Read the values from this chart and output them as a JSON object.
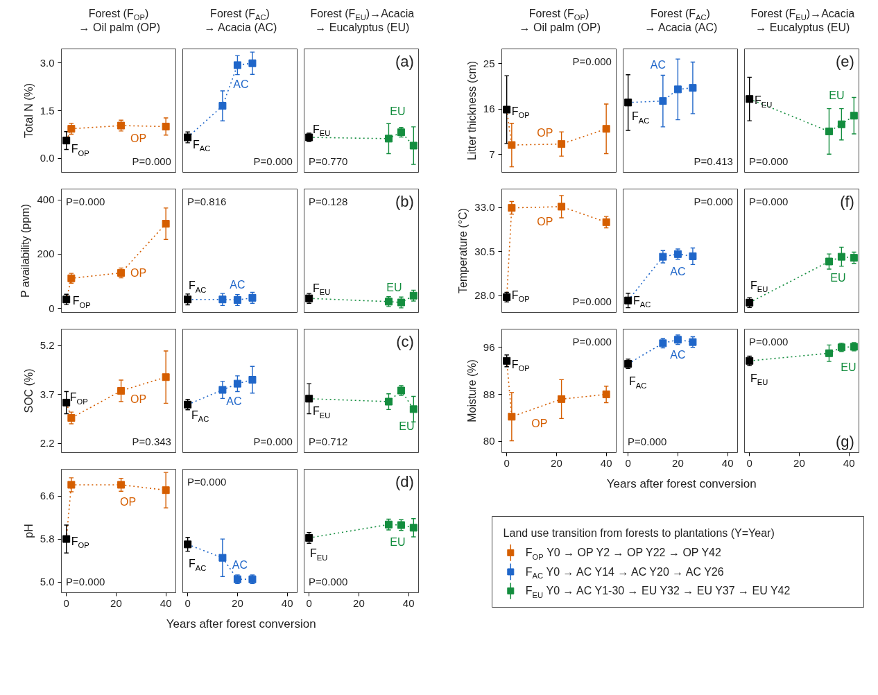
{
  "chart_data": [
    {
      "type": "line",
      "title": "Forest (F$_{OP}$)\n→ Oil palm (OP)",
      "ylabel": "Total N (%)",
      "xlim": [
        -2,
        44
      ],
      "ylim": [
        -0.44,
        3.44
      ],
      "yticks": [
        {
          "value": 0,
          "label": "0.0"
        },
        {
          "value": 1.5,
          "label": "1.5"
        },
        {
          "value": 3,
          "label": "3.0"
        }
      ],
      "tick_labels": "y",
      "marker": "square",
      "line_style": "dotted",
      "series": [
        {
          "color": "#d55e00",
          "colors": [
            "#000000",
            "#d55e00",
            "#d55e00",
            "#d55e00"
          ],
          "x": [
            0,
            2,
            22,
            40
          ],
          "values": [
            0.56,
            0.93,
            1.03,
            1.0
          ],
          "errors": [
            0.28,
            0.17,
            0.17,
            0.27
          ]
        }
      ],
      "annotations": [
        "F$_{OP}$",
        "OP",
        "P=0.000"
      ]
    },
    {
      "type": "line",
      "title": "Forest (F$_{AC}$)\n→ Acacia (AC)",
      "xlim": [
        -2,
        44
      ],
      "ylim": [
        -0.44,
        3.44
      ],
      "tick_labels": false,
      "marker": "square",
      "line_style": "dotted",
      "series": [
        {
          "color": "#1f66c9",
          "colors": [
            "#000000",
            "#1f66c9",
            "#1f66c9",
            "#1f66c9"
          ],
          "x": [
            0,
            14,
            20,
            26
          ],
          "values": [
            0.66,
            1.65,
            2.93,
            2.99
          ],
          "errors": [
            0.17,
            0.47,
            0.3,
            0.35
          ]
        }
      ],
      "annotations": [
        "F$_{AC}$",
        "AC",
        "P=0.000"
      ]
    },
    {
      "type": "line",
      "title": "Forest (F$_{EU}$)→Acacia\n→ Eucalyptus (EU)",
      "xlim": [
        -2,
        44
      ],
      "ylim": [
        -0.44,
        3.44
      ],
      "tick_labels": false,
      "marker": "square",
      "line_style": "dotted",
      "series": [
        {
          "color": "#138d3e",
          "colors": [
            "#000000",
            "#138d3e",
            "#138d3e",
            "#138d3e"
          ],
          "x": [
            0,
            32,
            37,
            42
          ],
          "values": [
            0.66,
            0.62,
            0.82,
            0.4
          ],
          "errors": [
            0.13,
            0.47,
            0.15,
            0.59
          ]
        }
      ],
      "annotations": [
        "F$_{EU}$",
        "EU",
        "P=0.770",
        "(a)"
      ]
    },
    {
      "type": "line",
      "ylabel": "P availability (ppm)",
      "xlim": [
        -2,
        44
      ],
      "ylim": [
        -15,
        440
      ],
      "yticks": [
        0,
        200,
        400
      ],
      "tick_labels": "y",
      "marker": "square",
      "line_style": "dotted",
      "series": [
        {
          "color": "#d55e00",
          "colors": [
            "#000000",
            "#d55e00",
            "#d55e00",
            "#d55e00"
          ],
          "x": [
            0,
            2,
            22,
            40
          ],
          "values": [
            33,
            111,
            131,
            312
          ],
          "errors": [
            19,
            18,
            18,
            58
          ]
        }
      ],
      "annotations": [
        "F$_{OP}$",
        "OP",
        "P=0.000"
      ]
    },
    {
      "type": "line",
      "xlim": [
        -2,
        44
      ],
      "ylim": [
        -15,
        440
      ],
      "tick_labels": false,
      "marker": "square",
      "line_style": "dotted",
      "series": [
        {
          "color": "#1f66c9",
          "colors": [
            "#000000",
            "#1f66c9",
            "#1f66c9",
            "#1f66c9"
          ],
          "x": [
            0,
            14,
            20,
            26
          ],
          "values": [
            33,
            33,
            31,
            39
          ],
          "errors": [
            20,
            22,
            20,
            20
          ]
        }
      ],
      "annotations": [
        "F$_{AC}$",
        "AC",
        "P=0.816"
      ]
    },
    {
      "type": "line",
      "xlim": [
        -2,
        44
      ],
      "ylim": [
        -15,
        440
      ],
      "tick_labels": false,
      "marker": "square",
      "line_style": "dotted",
      "series": [
        {
          "color": "#138d3e",
          "colors": [
            "#000000",
            "#138d3e",
            "#138d3e",
            "#138d3e"
          ],
          "x": [
            0,
            32,
            37,
            42
          ],
          "values": [
            37,
            25,
            22,
            47
          ],
          "errors": [
            18,
            18,
            20,
            20
          ]
        }
      ],
      "annotations": [
        "F$_{EU}$",
        "EU",
        "P=0.128",
        "(b)"
      ]
    },
    {
      "type": "line",
      "ylabel": "SOC (%)",
      "xlim": [
        -2,
        44
      ],
      "ylim": [
        1.92,
        5.7
      ],
      "yticks": [
        2.2,
        3.7,
        5.2
      ],
      "tick_labels": "y",
      "marker": "square",
      "line_style": "dotted",
      "series": [
        {
          "color": "#d55e00",
          "colors": [
            "#000000",
            "#d55e00",
            "#d55e00",
            "#d55e00"
          ],
          "x": [
            0,
            2,
            22,
            40
          ],
          "values": [
            3.45,
            2.98,
            3.81,
            4.23
          ],
          "errors": [
            0.34,
            0.18,
            0.33,
            0.8
          ]
        }
      ],
      "annotations": [
        "F$_{OP}$",
        "OP",
        "P=0.343"
      ]
    },
    {
      "type": "line",
      "xlim": [
        -2,
        44
      ],
      "ylim": [
        1.92,
        5.7
      ],
      "tick_labels": false,
      "marker": "square",
      "line_style": "dotted",
      "series": [
        {
          "color": "#1f66c9",
          "colors": [
            "#000000",
            "#1f66c9",
            "#1f66c9",
            "#1f66c9"
          ],
          "x": [
            0,
            14,
            20,
            26
          ],
          "values": [
            3.39,
            3.84,
            4.03,
            4.15
          ],
          "errors": [
            0.16,
            0.26,
            0.24,
            0.41
          ]
        }
      ],
      "annotations": [
        "F$_{AC}$",
        "AC",
        "P=0.000"
      ]
    },
    {
      "type": "line",
      "xlim": [
        -2,
        44
      ],
      "ylim": [
        1.92,
        5.7
      ],
      "tick_labels": false,
      "marker": "square",
      "line_style": "dotted",
      "series": [
        {
          "color": "#138d3e",
          "colors": [
            "#000000",
            "#138d3e",
            "#138d3e",
            "#138d3e"
          ],
          "x": [
            0,
            32,
            37,
            42
          ],
          "values": [
            3.57,
            3.48,
            3.82,
            3.25
          ],
          "errors": [
            0.46,
            0.24,
            0.15,
            0.39
          ]
        }
      ],
      "annotations": [
        "F$_{EU}$",
        "EU",
        "P=0.712",
        "(c)"
      ]
    },
    {
      "type": "line",
      "ylabel": "pH",
      "xlim": [
        -2,
        44
      ],
      "ylim": [
        4.8,
        7.1
      ],
      "xticks": [
        0,
        20,
        40
      ],
      "yticks": [
        {
          "value": 5,
          "label": "5.0"
        },
        5.8,
        6.6
      ],
      "marker": "square",
      "line_style": "dotted",
      "series": [
        {
          "color": "#d55e00",
          "colors": [
            "#000000",
            "#d55e00",
            "#d55e00",
            "#d55e00"
          ],
          "x": [
            0,
            2,
            22,
            40
          ],
          "values": [
            5.8,
            6.81,
            6.81,
            6.71
          ],
          "errors": [
            0.26,
            0.13,
            0.12,
            0.33
          ]
        }
      ],
      "annotations": [
        "F$_{OP}$",
        "OP",
        "P=0.000"
      ]
    },
    {
      "type": "line",
      "xlabel": "Years after forest conversion",
      "xlim": [
        -2,
        44
      ],
      "ylim": [
        4.8,
        7.1
      ],
      "xticks": [
        0,
        20,
        40
      ],
      "tick_labels": "x",
      "marker": "square",
      "line_style": "dotted",
      "series": [
        {
          "color": "#1f66c9",
          "colors": [
            "#000000",
            "#1f66c9",
            "#1f66c9",
            "#1f66c9"
          ],
          "x": [
            0,
            14,
            20,
            26
          ],
          "values": [
            5.7,
            5.45,
            5.05,
            5.05
          ],
          "errors": [
            0.13,
            0.35,
            0.08,
            0.08
          ]
        }
      ],
      "annotations": [
        "F$_{AC}$",
        "AC",
        "P=0.000"
      ]
    },
    {
      "type": "line",
      "xlim": [
        -2,
        44
      ],
      "ylim": [
        4.8,
        7.1
      ],
      "xticks": [
        0,
        20,
        40
      ],
      "tick_labels": "x",
      "marker": "square",
      "line_style": "dotted",
      "series": [
        {
          "color": "#138d3e",
          "colors": [
            "#000000",
            "#138d3e",
            "#138d3e",
            "#138d3e"
          ],
          "x": [
            0,
            32,
            37,
            42
          ],
          "values": [
            5.82,
            6.07,
            6.06,
            6.01
          ],
          "errors": [
            0.1,
            0.1,
            0.1,
            0.17
          ]
        }
      ],
      "annotations": [
        "F$_{EU}$",
        "EU",
        "P=0.000",
        "(d)"
      ]
    },
    {
      "type": "line",
      "title": "Forest (F$_{OP}$)\n→ Oil palm (OP)",
      "ylabel": "Litter thickness (cm)",
      "xlim": [
        -2,
        44
      ],
      "ylim": [
        3.5,
        27.9
      ],
      "yticks": [
        7,
        16,
        25
      ],
      "tick_labels": "y",
      "marker": "square",
      "line_style": "dotted",
      "series": [
        {
          "color": "#d55e00",
          "colors": [
            "#000000",
            "#d55e00",
            "#d55e00",
            "#d55e00"
          ],
          "x": [
            0,
            2,
            22,
            40
          ],
          "values": [
            15.9,
            8.9,
            9.1,
            12.1
          ],
          "errors": [
            6.7,
            4.3,
            2.4,
            4.9
          ]
        }
      ],
      "annotations": [
        "F$_{OP}$",
        "OP",
        "P=0.000"
      ]
    },
    {
      "type": "line",
      "title": "Forest (F$_{AC}$)\n→ Acacia (AC)",
      "xlim": [
        -2,
        44
      ],
      "ylim": [
        3.5,
        27.9
      ],
      "tick_labels": false,
      "marker": "square",
      "line_style": "dotted",
      "series": [
        {
          "color": "#1f66c9",
          "colors": [
            "#000000",
            "#1f66c9",
            "#1f66c9",
            "#1f66c9"
          ],
          "x": [
            0,
            14,
            20,
            26
          ],
          "values": [
            17.3,
            17.6,
            19.9,
            20.2
          ],
          "errors": [
            5.5,
            5.1,
            6.0,
            5.1
          ]
        }
      ],
      "annotations": [
        "F$_{AC}$",
        "AC",
        "P=0.413"
      ]
    },
    {
      "type": "line",
      "title": "Forest (F$_{EU}$)→Acacia\n→ Eucalyptus (EU)",
      "xlim": [
        -2,
        44
      ],
      "ylim": [
        3.5,
        27.9
      ],
      "tick_labels": false,
      "marker": "square",
      "line_style": "dotted",
      "series": [
        {
          "color": "#138d3e",
          "colors": [
            "#000000",
            "#138d3e",
            "#138d3e",
            "#138d3e"
          ],
          "x": [
            0,
            32,
            37,
            42
          ],
          "values": [
            18.0,
            11.6,
            13.0,
            14.7
          ],
          "errors": [
            4.3,
            4.5,
            3.1,
            3.6
          ]
        }
      ],
      "annotations": [
        "F$_{EU}$",
        "EU",
        "P=0.000",
        "(e)"
      ]
    },
    {
      "type": "line",
      "ylabel": "Temperature (°C)",
      "xlim": [
        -2,
        44
      ],
      "ylim": [
        27.05,
        34.05
      ],
      "yticks": [
        {
          "value": 28,
          "label": "28.0"
        },
        30.5,
        {
          "value": 33,
          "label": "33.0"
        }
      ],
      "tick_labels": "y",
      "marker": "square",
      "line_style": "dotted",
      "series": [
        {
          "color": "#d55e00",
          "colors": [
            "#000000",
            "#d55e00",
            "#d55e00",
            "#d55e00"
          ],
          "x": [
            0,
            2,
            22,
            40
          ],
          "values": [
            27.92,
            32.98,
            33.05,
            32.17
          ],
          "errors": [
            0.27,
            0.36,
            0.63,
            0.32
          ]
        }
      ],
      "annotations": [
        "F$_{OP}$",
        "OP",
        "P=0.000"
      ]
    },
    {
      "type": "line",
      "xlim": [
        -2,
        44
      ],
      "ylim": [
        27.05,
        34.05
      ],
      "tick_labels": false,
      "marker": "square",
      "line_style": "dotted",
      "series": [
        {
          "color": "#1f66c9",
          "colors": [
            "#000000",
            "#1f66c9",
            "#1f66c9",
            "#1f66c9"
          ],
          "x": [
            0,
            14,
            20,
            26
          ],
          "values": [
            27.73,
            30.21,
            30.36,
            30.24
          ],
          "errors": [
            0.41,
            0.35,
            0.29,
            0.47
          ]
        }
      ],
      "annotations": [
        "F$_{AC}$",
        "AC",
        "P=0.000"
      ]
    },
    {
      "type": "line",
      "xlim": [
        -2,
        44
      ],
      "ylim": [
        27.05,
        34.05
      ],
      "tick_labels": false,
      "marker": "square",
      "line_style": "dotted",
      "series": [
        {
          "color": "#138d3e",
          "colors": [
            "#000000",
            "#138d3e",
            "#138d3e",
            "#138d3e"
          ],
          "x": [
            0,
            32,
            37,
            42
          ],
          "values": [
            27.61,
            29.94,
            30.21,
            30.15
          ],
          "errors": [
            0.28,
            0.43,
            0.54,
            0.32
          ]
        }
      ],
      "annotations": [
        "F$_{EU}$",
        "EU",
        "P=0.000",
        "(f)"
      ]
    },
    {
      "type": "line",
      "ylabel": "Moisture (%)",
      "xlim": [
        -2,
        44
      ],
      "ylim": [
        78.1,
        99.1
      ],
      "xticks": [
        0,
        20,
        40
      ],
      "yticks": [
        80,
        88,
        96
      ],
      "marker": "square",
      "line_style": "dotted",
      "series": [
        {
          "color": "#d55e00",
          "colors": [
            "#000000",
            "#d55e00",
            "#d55e00",
            "#d55e00"
          ],
          "x": [
            0,
            2,
            22,
            40
          ],
          "values": [
            93.7,
            84.2,
            87.2,
            88.0
          ],
          "errors": [
            1.0,
            4.1,
            3.3,
            1.4
          ]
        }
      ],
      "annotations": [
        "F$_{OP}$",
        "OP",
        "P=0.000"
      ]
    },
    {
      "type": "line",
      "xlabel": "Years after forest conversion",
      "xlim": [
        -2,
        44
      ],
      "ylim": [
        78.1,
        99.1
      ],
      "xticks": [
        0,
        20,
        40
      ],
      "tick_labels": "x",
      "marker": "square",
      "line_style": "dotted",
      "series": [
        {
          "color": "#1f66c9",
          "colors": [
            "#000000",
            "#1f66c9",
            "#1f66c9",
            "#1f66c9"
          ],
          "x": [
            0,
            14,
            20,
            26
          ],
          "values": [
            93.2,
            96.7,
            97.3,
            96.9
          ],
          "errors": [
            0.8,
            0.8,
            0.8,
            0.9
          ]
        }
      ],
      "annotations": [
        "F$_{AC}$",
        "AC",
        "P=0.000"
      ]
    },
    {
      "type": "line",
      "xlim": [
        -2,
        44
      ],
      "ylim": [
        78.1,
        99.1
      ],
      "xticks": [
        0,
        20,
        40
      ],
      "tick_labels": "x",
      "marker": "square",
      "line_style": "dotted",
      "series": [
        {
          "color": "#138d3e",
          "colors": [
            "#000000",
            "#138d3e",
            "#138d3e",
            "#138d3e"
          ],
          "x": [
            0,
            32,
            37,
            42
          ],
          "values": [
            93.7,
            95.0,
            96.0,
            96.1
          ],
          "errors": [
            0.8,
            1.4,
            0.7,
            0.7
          ]
        }
      ],
      "annotations": [
        "F$_{EU}$",
        "EU",
        "P=0.000",
        "(g)"
      ]
    },
    {
      "type": "other",
      "title": "Land use transition from forests to plantations (Y=Year)",
      "series": [
        {
          "name": "F$_{OP}$ Y0 → OP Y2 → OP Y22 → OP Y42",
          "color": "#d55e00"
        },
        {
          "name": "F$_{AC}$ Y0 → AC Y14 → AC Y20 → AC Y26",
          "color": "#1f66c9"
        },
        {
          "name": "F$_{EU}$ Y0 → AC Y1-30 → EU Y32 → EU Y37 → EU Y42",
          "color": "#138d3e"
        }
      ]
    }
  ]
}
